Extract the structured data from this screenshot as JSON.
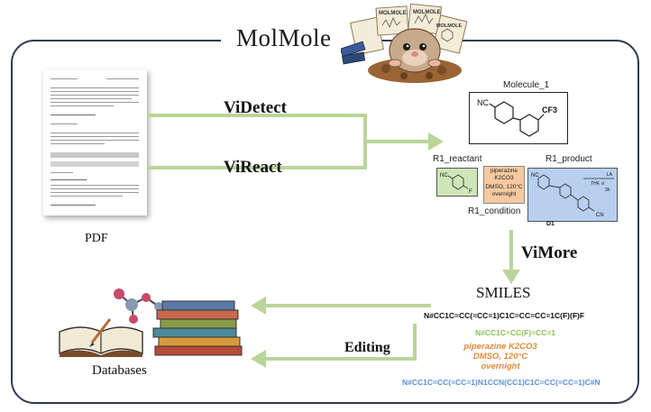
{
  "title": "MolMole",
  "pdf_label": "PDF",
  "videtect_label": "ViDetect",
  "vireact_label": "ViReact",
  "molecule_label": "Molecule_1",
  "molecule_nc": "NC",
  "molecule_cf3": "CF3",
  "r1_reactant_label": "R1_reactant",
  "r1_product_label": "R1_product",
  "r1_condition_label": "R1_condition",
  "reactant_nc": "NC",
  "reactant_f": "F",
  "condition_box_line1": "piperazine",
  "condition_box_line2": "K2CO3",
  "condition_box_line3": "DMSO, 120°C",
  "condition_box_line4": "overnight",
  "product_nc": "NC",
  "product_cn": "CN",
  "product_side1": "LA",
  "product_side2": "THF, rt",
  "product_side3": "3h",
  "product_d1": "D1",
  "vimore_label": "ViMore",
  "smiles_label": "SMILES",
  "smiles_1": "N#CC1C=CC(=CC=1)C1C=CC=CC=1C(F)(F)F",
  "smiles_2": "N#CC1C=CC(F)=CC=1",
  "cond_line1": "piperazine K2CO3",
  "cond_line2": "DMSO, 120°C",
  "cond_line3": "overnight",
  "smiles_3": "N#CC1C=CC(=CC=1)N1CCN(CC1)C1C=CC(=CC=1)C#N",
  "editing_label": "Editing",
  "databases_label": "Databases",
  "mascot_sheet1": "MOLMOLE",
  "mascot_sheet2": "MOLMOLE",
  "mascot_sheet3": "MOLMOLE",
  "colors": {
    "arrow_green": "#b9d59a",
    "reactant_fill": "#cfe6b8",
    "condition_fill": "#f6c9a0",
    "product_fill": "#b8cff0",
    "smiles_black": "#111111",
    "smiles_green": "#8bbf5a",
    "smiles_orange": "#e08a3a",
    "smiles_blue": "#5b8fd6",
    "frame": "#2f3a4f"
  }
}
